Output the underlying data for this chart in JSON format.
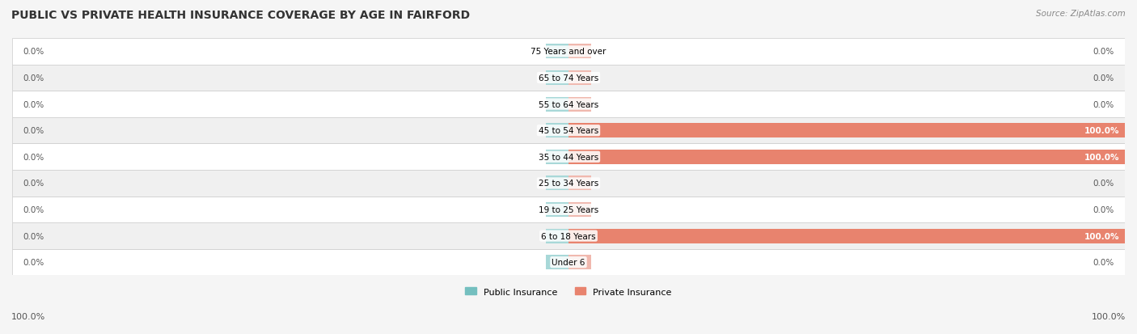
{
  "title": "PUBLIC VS PRIVATE HEALTH INSURANCE COVERAGE BY AGE IN FAIRFORD",
  "source": "Source: ZipAtlas.com",
  "categories": [
    "Under 6",
    "6 to 18 Years",
    "19 to 25 Years",
    "25 to 34 Years",
    "35 to 44 Years",
    "45 to 54 Years",
    "55 to 64 Years",
    "65 to 74 Years",
    "75 Years and over"
  ],
  "public_values": [
    0.0,
    0.0,
    0.0,
    0.0,
    0.0,
    0.0,
    0.0,
    0.0,
    0.0
  ],
  "private_values": [
    0.0,
    100.0,
    0.0,
    0.0,
    100.0,
    100.0,
    0.0,
    0.0,
    0.0
  ],
  "public_left_labels": [
    "0.0%",
    "0.0%",
    "0.0%",
    "0.0%",
    "0.0%",
    "0.0%",
    "0.0%",
    "0.0%",
    "0.0%"
  ],
  "private_right_labels": [
    "0.0%",
    "100.0%",
    "0.0%",
    "0.0%",
    "100.0%",
    "100.0%",
    "0.0%",
    "0.0%",
    "0.0%"
  ],
  "public_color": "#74bfbf",
  "private_color": "#e8836e",
  "private_zero_color": "#f0b8ae",
  "public_zero_color": "#a8d8d8",
  "bg_color": "#f5f5f5",
  "row_bg_color": "#f0f0f0",
  "legend_public": "Public Insurance",
  "legend_private": "Private Insurance",
  "x_left_label": "100.0%",
  "x_right_label": "100.0%",
  "bar_height": 0.55,
  "max_value": 100.0
}
